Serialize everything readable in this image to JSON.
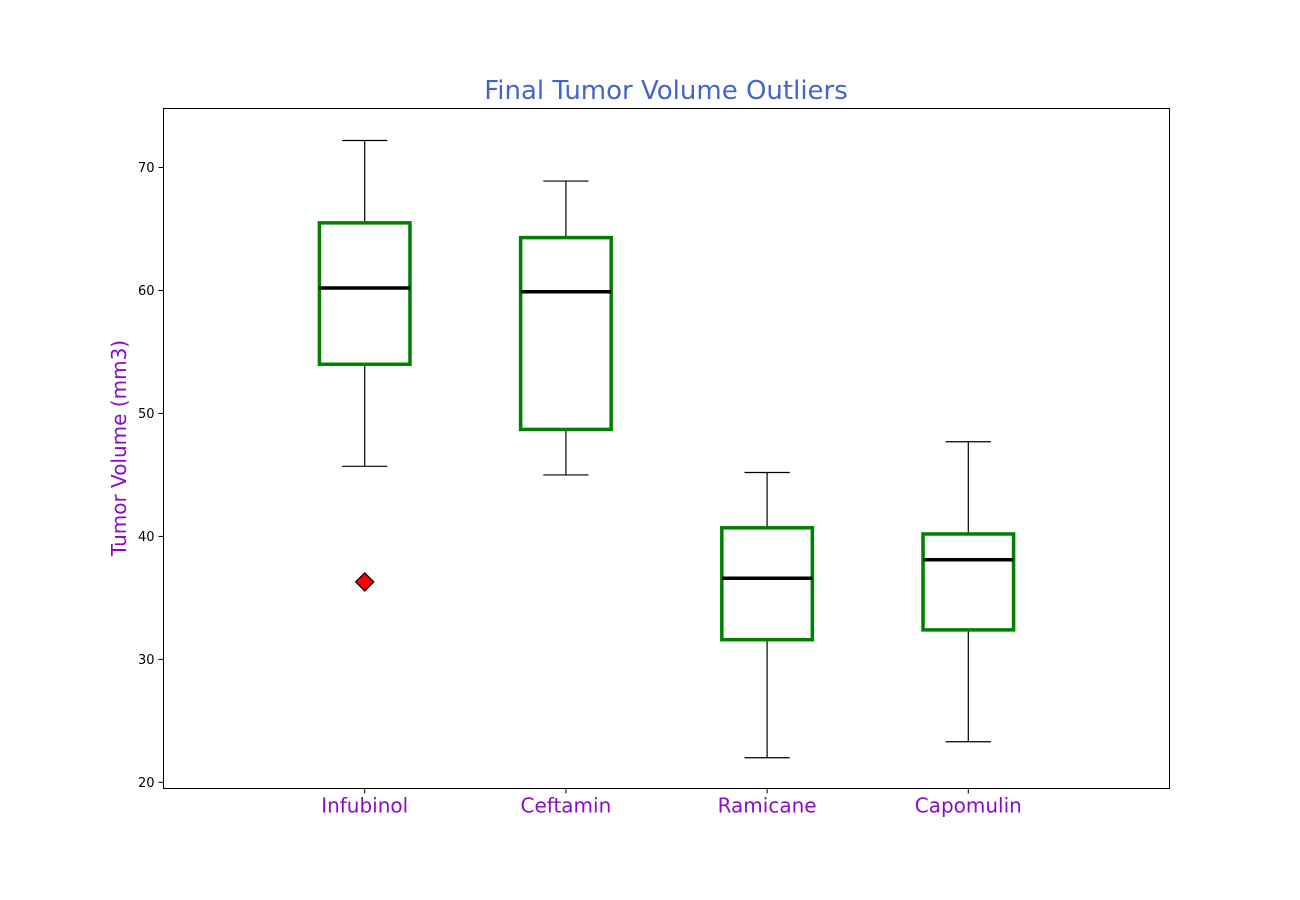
{
  "chart_data": {
    "type": "box",
    "title": "Final Tumor Volume Outliers",
    "xlabel": "",
    "ylabel": "Tumor Volume (mm3)",
    "ylim": [
      19.5,
      74.8
    ],
    "yticks": [
      20,
      30,
      40,
      50,
      60,
      70
    ],
    "grid": false,
    "categories": [
      "Infubinol",
      "Ceftamin",
      "Ramicane",
      "Capomulin"
    ],
    "boxes": [
      {
        "category": "Infubinol",
        "whisker_low": 45.7,
        "q1": 54.0,
        "median": 60.2,
        "q3": 65.5,
        "whisker_high": 72.2,
        "outliers": [
          36.3
        ]
      },
      {
        "category": "Ceftamin",
        "whisker_low": 45.0,
        "q1": 48.7,
        "median": 59.9,
        "q3": 64.3,
        "whisker_high": 68.9,
        "outliers": []
      },
      {
        "category": "Ramicane",
        "whisker_low": 22.0,
        "q1": 31.6,
        "median": 36.6,
        "q3": 40.7,
        "whisker_high": 45.2,
        "outliers": []
      },
      {
        "category": "Capomulin",
        "whisker_low": 23.3,
        "q1": 32.4,
        "median": 38.1,
        "q3": 40.2,
        "whisker_high": 47.7,
        "outliers": []
      }
    ],
    "colors": {
      "title": "#4466cc",
      "axis_label": "#8a0cc8",
      "category_label": "#8a0cc8",
      "box": "#008000",
      "median": "#000000",
      "whisker": "#000000",
      "outlier_fill": "#ff0000",
      "outlier_edge": "#000000"
    },
    "outlier_marker": "diamond"
  }
}
